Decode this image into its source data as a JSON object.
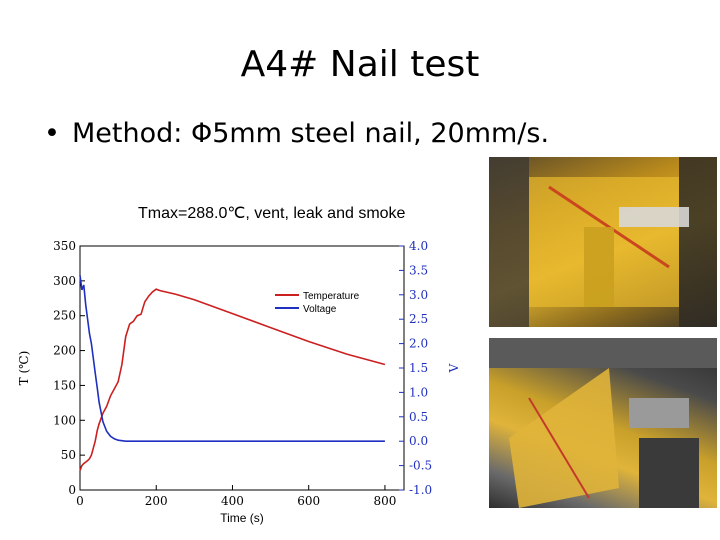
{
  "slide": {
    "title": "A4# Nail test",
    "bullet": "Method: Φ5mm steel nail, 20mm/s.",
    "chart_caption": "Tmax=288.0℃, vent, leak and smoke"
  },
  "colors": {
    "temperature": "#cc1f1f",
    "voltage": "#1f2fbf",
    "axis": "#000000",
    "right_axis": "#1f2fbf"
  },
  "chart_data": {
    "type": "line",
    "xlabel": "Time (s)",
    "ylabel": "T (℃)",
    "ylabel_right": "V",
    "xlim": [
      0,
      850
    ],
    "ylim": [
      0,
      350
    ],
    "ylim_right": [
      -1.0,
      4.0
    ],
    "x_ticks": [
      "0",
      "200",
      "400",
      "600",
      "800"
    ],
    "y_ticks": [
      "0",
      "50",
      "100",
      "150",
      "200",
      "250",
      "300",
      "350"
    ],
    "y_ticks_right": [
      "-1.0",
      "-0.5",
      "0.0",
      "0.5",
      "1.0",
      "1.5",
      "2.0",
      "2.5",
      "3.0",
      "3.5",
      "4.0"
    ],
    "legend_position": "upper-right",
    "grid": false,
    "series": [
      {
        "name": "Temperature",
        "axis": "left",
        "x": [
          0,
          5,
          10,
          15,
          20,
          25,
          30,
          35,
          40,
          45,
          50,
          60,
          70,
          80,
          90,
          100,
          110,
          120,
          130,
          140,
          150,
          160,
          170,
          180,
          190,
          200,
          210,
          250,
          300,
          400,
          500,
          600,
          700,
          800
        ],
        "y": [
          28,
          35,
          38,
          40,
          42,
          45,
          50,
          60,
          70,
          85,
          95,
          110,
          120,
          135,
          145,
          155,
          180,
          220,
          238,
          242,
          250,
          252,
          270,
          278,
          284,
          288,
          286,
          281,
          273,
          253,
          233,
          213,
          195,
          180
        ]
      },
      {
        "name": "Voltage",
        "axis": "right",
        "x": [
          0,
          5,
          10,
          15,
          20,
          25,
          30,
          35,
          40,
          45,
          50,
          55,
          60,
          70,
          80,
          90,
          100,
          120,
          150,
          200,
          300,
          400,
          500,
          600,
          700,
          800
        ],
        "y": [
          3.4,
          3.1,
          3.2,
          2.8,
          2.5,
          2.2,
          2.0,
          1.7,
          1.4,
          1.1,
          0.8,
          0.6,
          0.4,
          0.2,
          0.1,
          0.05,
          0.02,
          0.0,
          0.0,
          0.0,
          0.0,
          0.0,
          0.0,
          0.0,
          0.0,
          0.0
        ]
      }
    ]
  }
}
